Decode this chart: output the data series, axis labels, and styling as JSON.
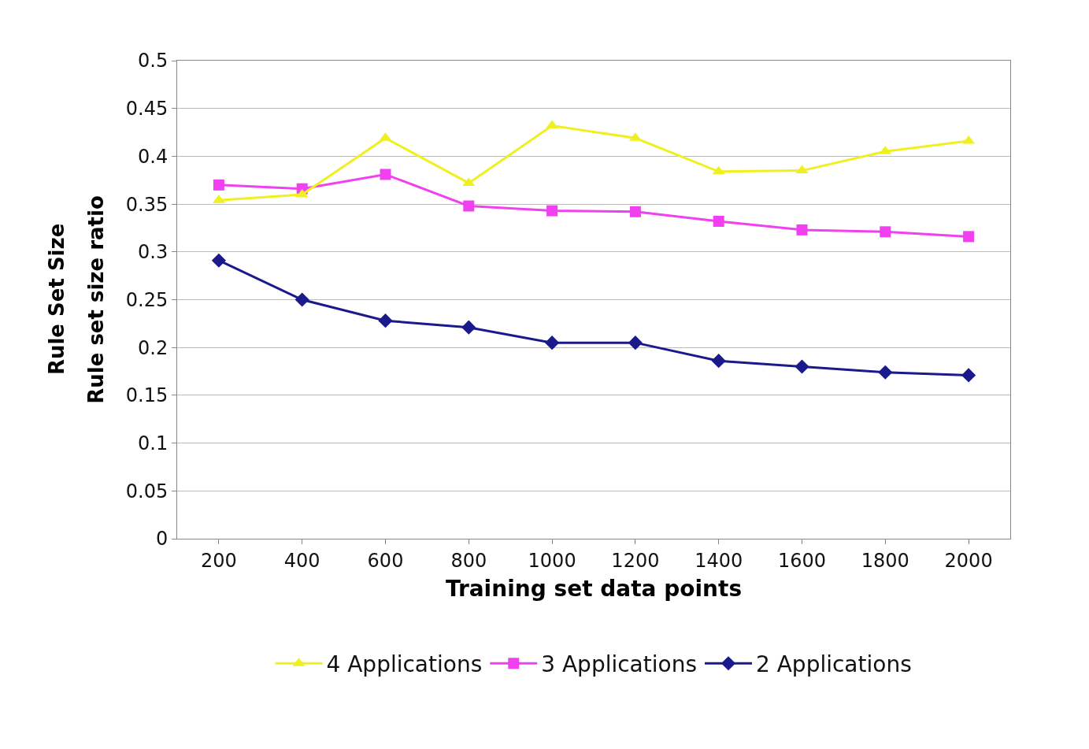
{
  "chart_data": {
    "type": "line",
    "xlabel": "Training set data points",
    "ylabel": "Rule set size ratio",
    "annotations": [
      "Rule Set Size"
    ],
    "categories": [
      "200",
      "400",
      "600",
      "800",
      "1000",
      "1200",
      "1400",
      "1600",
      "1800",
      "2000"
    ],
    "series": [
      {
        "name": "4 Applications",
        "color": "#f0f020",
        "marker": "triangle",
        "values": [
          0.354,
          0.36,
          0.419,
          0.372,
          0.432,
          0.419,
          0.384,
          0.385,
          0.405,
          0.416
        ]
      },
      {
        "name": "3 Applications",
        "color": "#f040f0",
        "marker": "square",
        "values": [
          0.37,
          0.366,
          0.381,
          0.348,
          0.343,
          0.342,
          0.332,
          0.323,
          0.321,
          0.316
        ]
      },
      {
        "name": "2 Applications",
        "color": "#1a1a8c",
        "marker": "diamond",
        "values": [
          0.291,
          0.25,
          0.228,
          0.221,
          0.205,
          0.205,
          0.186,
          0.18,
          0.174,
          0.171
        ]
      }
    ],
    "ylim": [
      0,
      0.5
    ],
    "yticks": [
      0,
      0.05,
      0.1,
      0.15,
      0.2,
      0.25,
      0.3,
      0.35,
      0.4,
      0.45,
      0.5
    ],
    "grid": "y",
    "legend": "bottom"
  }
}
